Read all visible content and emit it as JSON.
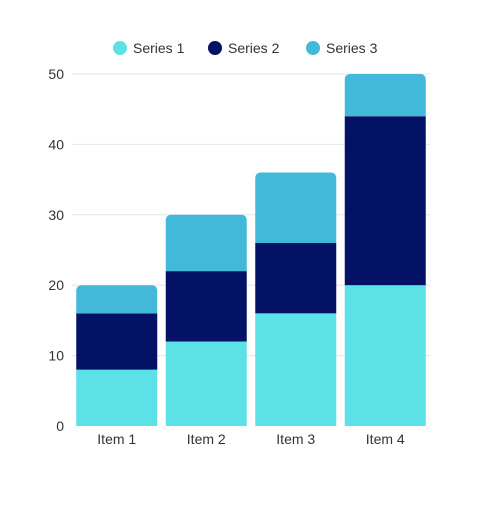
{
  "chart_data": {
    "type": "bar",
    "stacked": true,
    "categories": [
      "Item 1",
      "Item 2",
      "Item 3",
      "Item 4"
    ],
    "series": [
      {
        "name": "Series 1",
        "color": "#5ce1e6",
        "values": [
          8,
          12,
          16,
          20
        ]
      },
      {
        "name": "Series 2",
        "color": "#041266",
        "values": [
          8,
          10,
          10,
          24
        ]
      },
      {
        "name": "Series 3",
        "color": "#42b9d8",
        "values": [
          4,
          8,
          10,
          6
        ]
      }
    ],
    "ylim": [
      0,
      50
    ],
    "yticks": [
      0,
      10,
      20,
      30,
      40,
      50
    ],
    "grid": true,
    "legend": "top"
  }
}
